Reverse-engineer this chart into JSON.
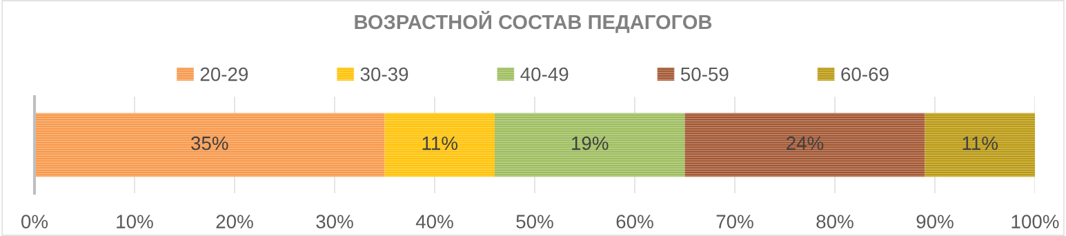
{
  "chart_data": {
    "type": "bar",
    "title": "ВОЗРАСТНОЙ СОСТАВ ПЕДАГОГОВ",
    "orientation": "horizontal",
    "stacked": true,
    "categories": [
      null
    ],
    "series": [
      {
        "name": "20-29",
        "color": "#f79646",
        "values": [
          35
        ],
        "value_labels": [
          "35%"
        ]
      },
      {
        "name": "30-39",
        "color": "#ffc000",
        "values": [
          11
        ],
        "value_labels": [
          "11%"
        ]
      },
      {
        "name": "40-49",
        "color": "#9bbb59",
        "values": [
          19
        ],
        "value_labels": [
          "19%"
        ]
      },
      {
        "name": "50-59",
        "color": "#a0522d",
        "values": [
          24
        ],
        "value_labels": [
          "24%"
        ]
      },
      {
        "name": "60-69",
        "color": "#b8960c",
        "values": [
          11
        ],
        "value_labels": [
          "11%"
        ]
      }
    ],
    "xlim": [
      0,
      100
    ],
    "xticks": [
      {
        "value": 0,
        "label": "0%"
      },
      {
        "value": 10,
        "label": "10%"
      },
      {
        "value": 20,
        "label": "20%"
      },
      {
        "value": 30,
        "label": "30%"
      },
      {
        "value": 40,
        "label": "40%"
      },
      {
        "value": 50,
        "label": "50%"
      },
      {
        "value": 60,
        "label": "60%"
      },
      {
        "value": 70,
        "label": "70%"
      },
      {
        "value": 80,
        "label": "80%"
      },
      {
        "value": 90,
        "label": "90%"
      },
      {
        "value": 100,
        "label": "100%"
      }
    ],
    "grid": "x",
    "legend": "top"
  }
}
